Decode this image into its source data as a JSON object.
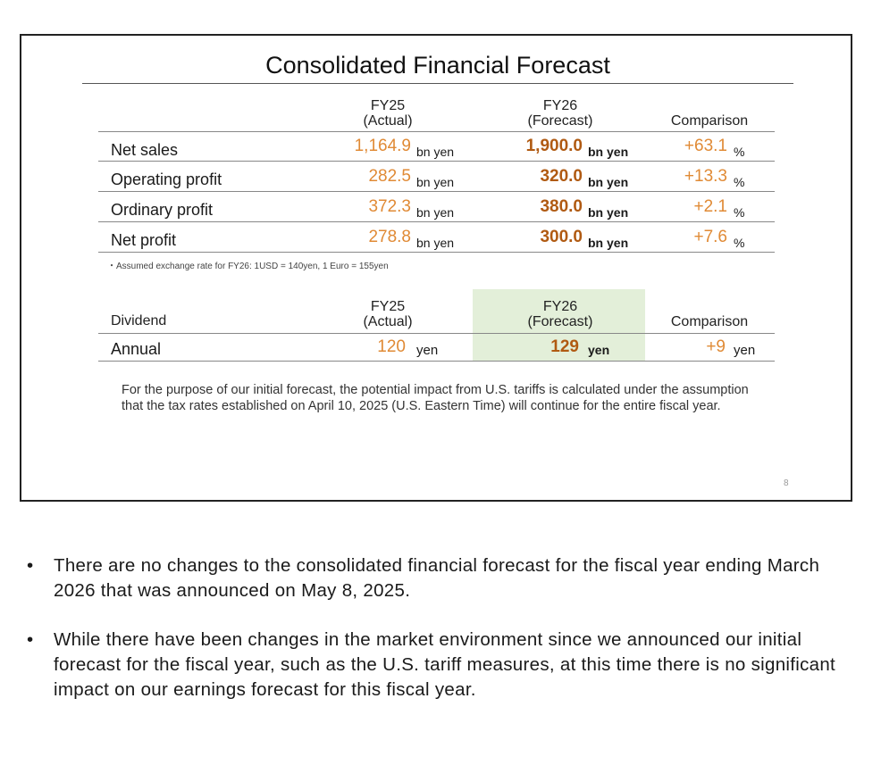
{
  "slide": {
    "title": "Consolidated Financial Forecast",
    "columns": {
      "fy25": "FY25",
      "fy25_sub": "(Actual)",
      "fy26": "FY26",
      "fy26_sub": "(Forecast)",
      "comparison": "Comparison"
    },
    "rows": [
      {
        "label": "Net sales",
        "fy25": "1,164.9",
        "fy25_unit": "bn yen",
        "fy26": "1,900.0",
        "fy26_unit": "bn yen",
        "comparison": "+63.1",
        "comparison_unit": "%"
      },
      {
        "label": "Operating profit",
        "fy25": "282.5",
        "fy25_unit": "bn yen",
        "fy26": "320.0",
        "fy26_unit": "bn yen",
        "comparison": "+13.3",
        "comparison_unit": "%"
      },
      {
        "label": "Ordinary profit",
        "fy25": "372.3",
        "fy25_unit": "bn yen",
        "fy26": "380.0",
        "fy26_unit": "bn yen",
        "comparison": "+2.1",
        "comparison_unit": "%"
      },
      {
        "label": "Net profit",
        "fy25": "278.8",
        "fy25_unit": "bn yen",
        "fy26": "300.0",
        "fy26_unit": "bn yen",
        "comparison": "+7.6",
        "comparison_unit": "%"
      }
    ],
    "note": "・Assumed exchange rate for FY26: 1USD = 140yen, 1 Euro = 155yen",
    "dividend": {
      "header_label": "Dividend",
      "fy25": "FY25",
      "fy25_sub": "(Actual)",
      "fy26": "FY26",
      "fy26_sub": "(Forecast)",
      "comparison": "Comparison",
      "row": {
        "label": "Annual",
        "fy25": "120",
        "fy25_unit": "yen",
        "fy26": "129",
        "fy26_unit": "yen",
        "comparison": "+9",
        "comparison_unit": "yen"
      }
    },
    "paragraph": "For the purpose of our initial forecast, the potential impact from U.S. tariffs is calculated under the assumption that the tax rates established on April 10, 2025 (U.S. Eastern Time) will continue for the entire fiscal year.",
    "page_number": "8"
  },
  "bullets": [
    "There are no changes to the consolidated financial forecast for the fiscal year ending March 2026 that was announced on May 8, 2025.",
    "While there have been changes in the market environment since we announced our initial forecast for the fiscal year, such as the U.S. tariff measures, at this time there is no significant impact on our earnings forecast for this fiscal year."
  ],
  "bullet_symbol": "•",
  "colors": {
    "actual": "#e08a35",
    "forecast": "#b05a12",
    "highlight": "#e3efd9"
  }
}
